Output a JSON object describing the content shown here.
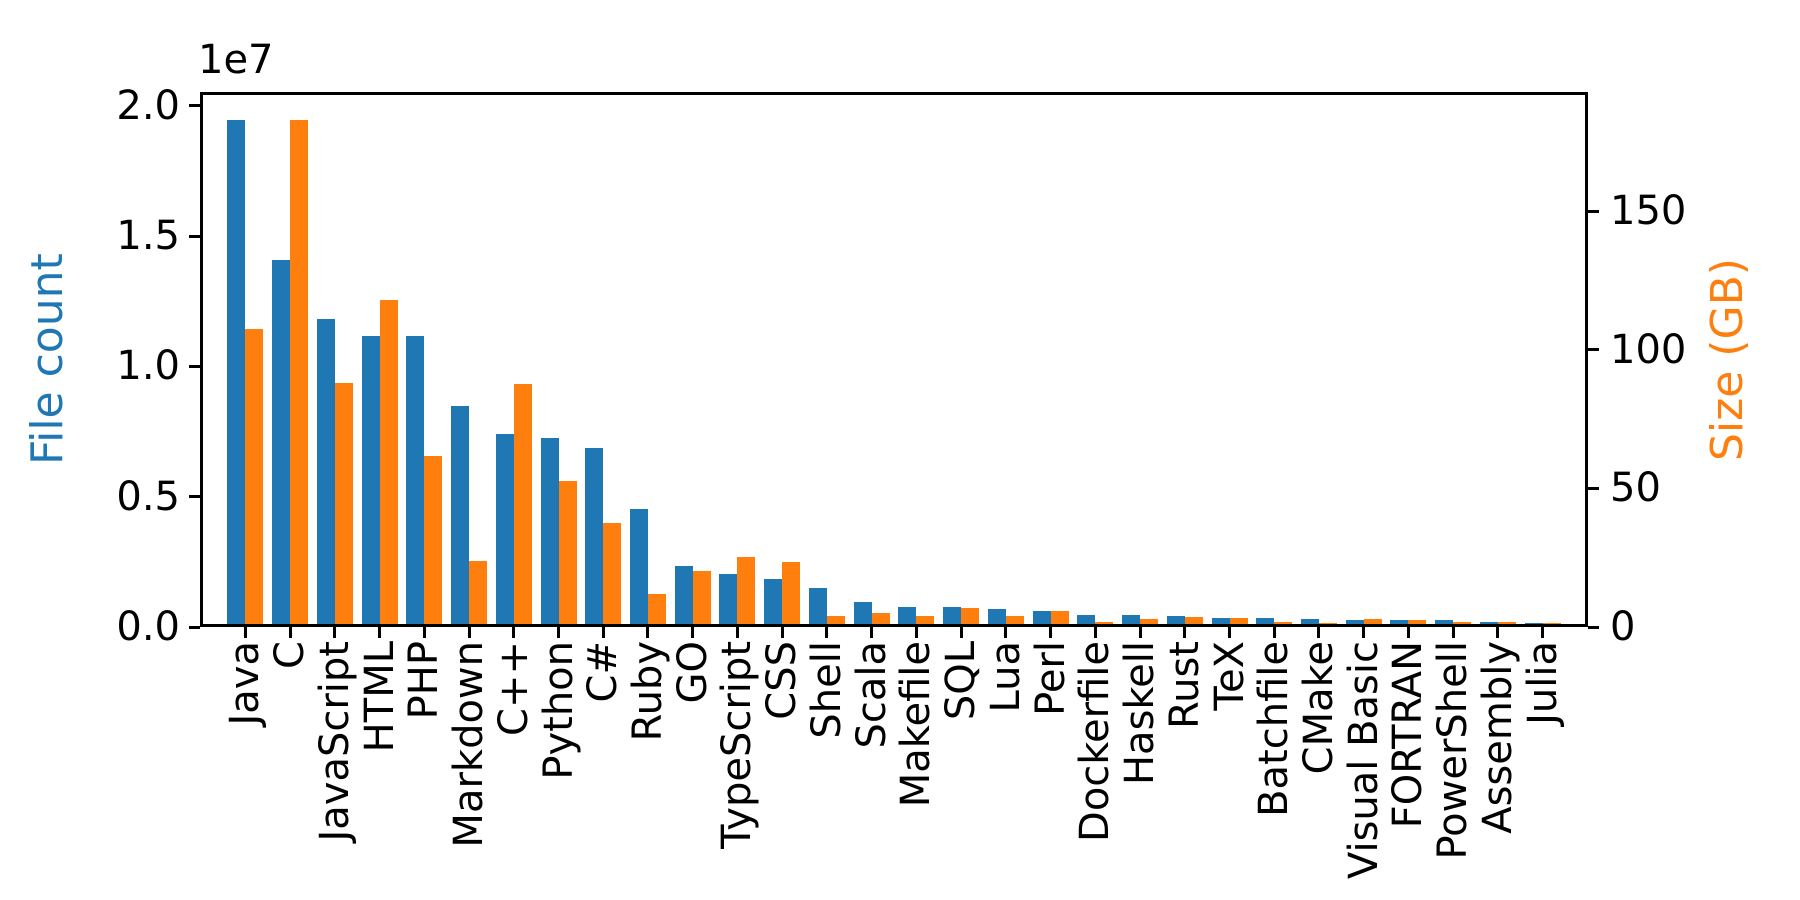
{
  "figure": {
    "background": "#ffffff"
  },
  "chart_data": {
    "type": "bar",
    "title": "",
    "dual_axis": true,
    "grid": false,
    "legend": "none",
    "categories": [
      "Java",
      "C",
      "JavaScript",
      "HTML",
      "PHP",
      "Markdown",
      "C++",
      "Python",
      "C#",
      "Ruby",
      "GO",
      "TypeScript",
      "CSS",
      "Shell",
      "Scala",
      "Makefile",
      "SQL",
      "Lua",
      "Perl",
      "Dockerfile",
      "Haskell",
      "Rust",
      "TeX",
      "Batchfile",
      "CMake",
      "Visual Basic",
      "FORTRAN",
      "PowerShell",
      "Assembly",
      "Julia"
    ],
    "series": [
      {
        "name": "File count",
        "axis": "left",
        "color": "#1f77b4",
        "values": [
          19548190,
          14143113,
          11839883,
          11178557,
          11177610,
          8464626,
          7380520,
          7226626,
          6811652,
          4473331,
          2265436,
          1940406,
          1734406,
          1385648,
          835755,
          679430,
          656671,
          578554,
          497949,
          366505,
          340623,
          322431,
          251015,
          236945,
          175282,
          155652,
          142038,
          136846,
          82905,
          58317
        ]
      },
      {
        "name": "Size (GB)",
        "axis": "right",
        "color": "#ff7f0e",
        "values": [
          107.7,
          183.83,
          87.82,
          118.12,
          61.41,
          23.09,
          87.73,
          52.03,
          36.83,
          10.95,
          19.28,
          24.59,
          22.67,
          3.01,
          3.87,
          2.92,
          5.67,
          2.81,
          4.7,
          0.71,
          1.85,
          2.68,
          2.15,
          0.7,
          0.54,
          1.91,
          1.62,
          0.69,
          0.78,
          0.29
        ]
      }
    ],
    "left_axis": {
      "label": "File count",
      "color": "#1f77b4",
      "offset_text": "1e7",
      "tick_values": [
        0,
        5000000,
        10000000,
        15000000,
        20000000
      ],
      "tick_labels": [
        "0.0",
        "0.5",
        "1.0",
        "1.5",
        "2.0"
      ],
      "ylim": [
        0,
        20525600
      ]
    },
    "right_axis": {
      "label": "Size (GB)",
      "color": "#ff7f0e",
      "tick_values": [
        0,
        50,
        100,
        150
      ],
      "tick_labels": [
        "0",
        "50",
        "100",
        "150"
      ],
      "ylim": [
        0,
        193.02
      ]
    }
  }
}
